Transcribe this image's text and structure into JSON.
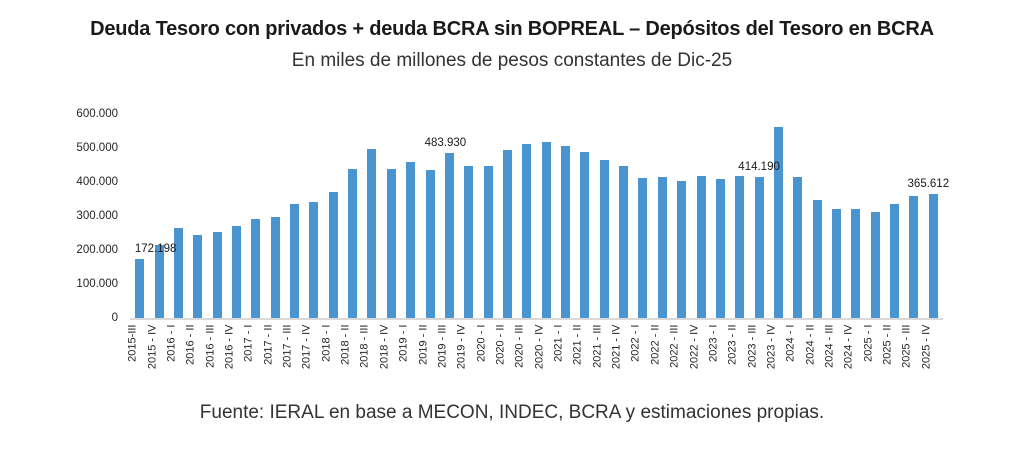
{
  "page": {
    "title": "Deuda Tesoro con privados + deuda BCRA sin BOPREAL – Depósitos del Tesoro en BCRA",
    "subtitle": "En miles de millones de pesos constantes de Dic-25",
    "source": "Fuente: IERAL en base a MECON, INDEC, BCRA y estimaciones propias."
  },
  "colors": {
    "bar": "#4a94d0",
    "axis_line": "#d9d9d9",
    "title_text": "#1a1a1a",
    "tick_text": "#262626"
  },
  "chart_data": {
    "type": "bar",
    "title": "Deuda Tesoro con privados + deuda BCRA sin BOPREAL – Depósitos del Tesoro en BCRA",
    "subtitle": "En miles de millones de pesos constantes de Dic-25",
    "xlabel": "",
    "ylabel": "",
    "ylim": [
      0,
      600000
    ],
    "y_tick_interval": 100000,
    "y_tick_labels": [
      "0",
      "100.000",
      "200.000",
      "300.000",
      "400.000",
      "500.000",
      "600.000"
    ],
    "grid": false,
    "legend": false,
    "categories": [
      "2015-III",
      "2015 - IV",
      "2016 - I",
      "2016 - II",
      "2016 - III",
      "2016 - IV",
      "2017 - I",
      "2017 - II",
      "2017 - III",
      "2017 - IV",
      "2018 - I",
      "2018 - II",
      "2018 - III",
      "2018 - IV",
      "2019 - I",
      "2019 - II",
      "2019 - III",
      "2019 - IV",
      "2020 - I",
      "2020 - II",
      "2020 - III",
      "2020 - IV",
      "2021 - I",
      "2021 - II",
      "2021 - III",
      "2021 - IV",
      "2022 - I",
      "2022 - II",
      "2022 - III",
      "2022 - IV",
      "2023 - I",
      "2023 - II",
      "2023 - III",
      "2023 - IV",
      "2024 - I",
      "2024 - II",
      "2024 - III",
      "2024 - IV",
      "2025 - I",
      "2025 - II",
      "2025 - III",
      "2025 - IV"
    ],
    "values": [
      172198,
      215000,
      265000,
      243000,
      253000,
      271000,
      290000,
      296000,
      334000,
      340000,
      372000,
      437000,
      497000,
      438000,
      460000,
      435000,
      483930,
      446000,
      447000,
      494000,
      511000,
      519000,
      505000,
      487000,
      464000,
      446000,
      413000,
      414000,
      403000,
      418000,
      408000,
      418000,
      414190,
      561000,
      414000,
      346000,
      322000,
      322000,
      313000,
      334000,
      358000,
      365612
    ],
    "data_labels": [
      {
        "index": 0,
        "text": "172.198"
      },
      {
        "index": 16,
        "text": "483.930"
      },
      {
        "index": 32,
        "text": "414.190"
      },
      {
        "index": 41,
        "text": "365.612"
      }
    ]
  }
}
